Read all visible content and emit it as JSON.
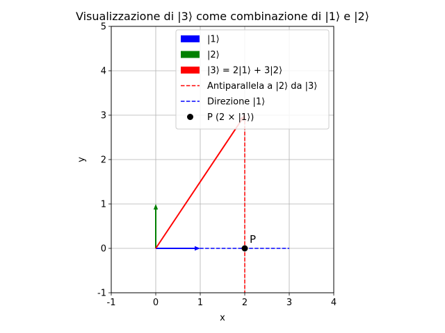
{
  "chart_data": {
    "type": "line",
    "title": "Visualizzazione di |3⟩ come combinazione di |1⟩ e |2⟩",
    "xlabel": "x",
    "ylabel": "y",
    "xlim": [
      -1,
      4
    ],
    "ylim": [
      -1,
      5
    ],
    "xticks": [
      -1,
      0,
      1,
      2,
      3,
      4
    ],
    "yticks": [
      -1,
      0,
      1,
      2,
      3,
      4,
      5
    ],
    "grid": true,
    "legend_position": "top-right",
    "vectors": [
      {
        "name": "|1⟩",
        "origin": [
          0,
          0
        ],
        "components": [
          1,
          0
        ],
        "color": "#0000ff"
      },
      {
        "name": "|2⟩",
        "origin": [
          0,
          0
        ],
        "components": [
          0,
          1
        ],
        "color": "#008000"
      },
      {
        "name": "|3⟩ = 2|1⟩ + 3|2⟩",
        "origin": [
          0,
          0
        ],
        "components": [
          2,
          3
        ],
        "color": "#ff0000"
      }
    ],
    "lines": [
      {
        "name": "Antiparallela a |2⟩ da |3⟩",
        "x": [
          2,
          2
        ],
        "y": [
          3,
          -1
        ],
        "color": "#ff0000",
        "style": "dashed"
      },
      {
        "name": "Direzione |1⟩",
        "x": [
          0,
          3
        ],
        "y": [
          0,
          0
        ],
        "color": "#0000ff",
        "style": "dashed"
      }
    ],
    "points": [
      {
        "name": "P (2 × |1⟩)",
        "x": 2,
        "y": 0,
        "color": "#000000",
        "label": "P"
      }
    ]
  }
}
